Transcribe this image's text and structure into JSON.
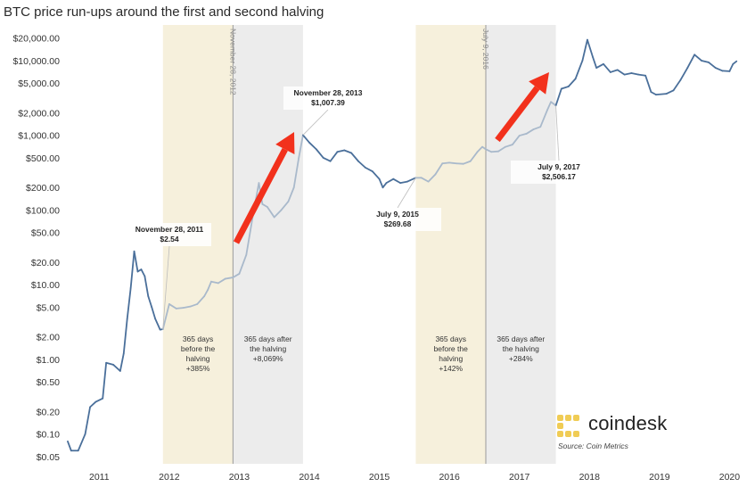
{
  "chart_data": {
    "type": "line",
    "title": "BTC price run-ups around the first and second halving",
    "xlabel": "",
    "ylabel": "",
    "scale": "log",
    "ylim": [
      0.04,
      30000
    ],
    "y_ticks": [
      {
        "value": 20000,
        "label": "$20,000.00"
      },
      {
        "value": 10000,
        "label": "$10,000.00"
      },
      {
        "value": 5000,
        "label": "$5,000.00"
      },
      {
        "value": 2000,
        "label": "$2,000.00"
      },
      {
        "value": 1000,
        "label": "$1,000.00"
      },
      {
        "value": 500,
        "label": "$500.00"
      },
      {
        "value": 200,
        "label": "$200.00"
      },
      {
        "value": 100,
        "label": "$100.00"
      },
      {
        "value": 50,
        "label": "$50.00"
      },
      {
        "value": 20,
        "label": "$20.00"
      },
      {
        "value": 10,
        "label": "$10.00"
      },
      {
        "value": 5,
        "label": "$5.00"
      },
      {
        "value": 2,
        "label": "$2.00"
      },
      {
        "value": 1,
        "label": "$1.00"
      },
      {
        "value": 0.5,
        "label": "$0.50"
      },
      {
        "value": 0.2,
        "label": "$0.20"
      },
      {
        "value": 0.1,
        "label": "$0.10"
      },
      {
        "value": 0.05,
        "label": "$0.05"
      }
    ],
    "x_ticks": [
      {
        "value": 2011.0,
        "label": "2011"
      },
      {
        "value": 2012.0,
        "label": "2012"
      },
      {
        "value": 2013.0,
        "label": "2013"
      },
      {
        "value": 2014.0,
        "label": "2014"
      },
      {
        "value": 2015.0,
        "label": "2015"
      },
      {
        "value": 2016.0,
        "label": "2016"
      },
      {
        "value": 2017.0,
        "label": "2017"
      },
      {
        "value": 2018.0,
        "label": "2018"
      },
      {
        "value": 2019.0,
        "label": "2019"
      },
      {
        "value": 2020.0,
        "label": "2020"
      }
    ],
    "grid": false,
    "bands": [
      {
        "from": 2011.91,
        "to": 2012.91,
        "color": "#f6f0dc",
        "label_lines": [
          "365 days",
          "before the",
          "halving",
          "+385%"
        ]
      },
      {
        "from": 2012.91,
        "to": 2013.91,
        "color": "#ececec",
        "label_lines": [
          "365 days after",
          "the halving",
          "+8,069%"
        ]
      },
      {
        "from": 2015.52,
        "to": 2016.52,
        "color": "#f6f0dc",
        "label_lines": [
          "365 days",
          "before the",
          "halving",
          "+142%"
        ]
      },
      {
        "from": 2016.52,
        "to": 2017.52,
        "color": "#ececec",
        "label_lines": [
          "365 days after",
          "the halving",
          "+284%"
        ]
      }
    ],
    "halvings": [
      {
        "x": 2012.91,
        "label": "November 28, 2012"
      },
      {
        "x": 2016.52,
        "label": "July 9, 2016"
      }
    ],
    "annotations": [
      {
        "x": 2011.91,
        "y": 2.54,
        "date": "November 28, 2011",
        "value": "$2.54"
      },
      {
        "x": 2013.91,
        "y": 1007.39,
        "date": "November 28, 2013",
        "value": "$1,007.39"
      },
      {
        "x": 2015.52,
        "y": 269.68,
        "date": "July 9, 2015",
        "value": "$269.68"
      },
      {
        "x": 2017.52,
        "y": 2506.17,
        "date": "July 9, 2017",
        "value": "$2,506.17"
      }
    ],
    "series": [
      {
        "color": "#4a6f9a",
        "highlight_color": "#a9b9cb",
        "points": [
          [
            2010.55,
            0.08
          ],
          [
            2010.6,
            0.06
          ],
          [
            2010.7,
            0.06
          ],
          [
            2010.8,
            0.1
          ],
          [
            2010.87,
            0.23
          ],
          [
            2010.95,
            0.27
          ],
          [
            2011.05,
            0.3
          ],
          [
            2011.1,
            0.9
          ],
          [
            2011.2,
            0.85
          ],
          [
            2011.3,
            0.7
          ],
          [
            2011.35,
            1.2
          ],
          [
            2011.4,
            3.5
          ],
          [
            2011.45,
            9.0
          ],
          [
            2011.5,
            28.0
          ],
          [
            2011.55,
            15.0
          ],
          [
            2011.6,
            16.0
          ],
          [
            2011.65,
            13.0
          ],
          [
            2011.7,
            7.0
          ],
          [
            2011.75,
            5.0
          ],
          [
            2011.8,
            3.5
          ],
          [
            2011.87,
            2.5
          ],
          [
            2011.91,
            2.54
          ],
          [
            2012.0,
            5.5
          ],
          [
            2012.1,
            4.8
          ],
          [
            2012.2,
            4.9
          ],
          [
            2012.3,
            5.1
          ],
          [
            2012.4,
            5.5
          ],
          [
            2012.5,
            7.0
          ],
          [
            2012.55,
            8.5
          ],
          [
            2012.6,
            11.0
          ],
          [
            2012.7,
            10.5
          ],
          [
            2012.8,
            12.0
          ],
          [
            2012.91,
            12.5
          ],
          [
            2013.0,
            14.0
          ],
          [
            2013.1,
            25.0
          ],
          [
            2013.2,
            90.0
          ],
          [
            2013.28,
            230.0
          ],
          [
            2013.33,
            120.0
          ],
          [
            2013.4,
            110.0
          ],
          [
            2013.5,
            80.0
          ],
          [
            2013.6,
            100.0
          ],
          [
            2013.7,
            130.0
          ],
          [
            2013.78,
            200.0
          ],
          [
            2013.85,
            500.0
          ],
          [
            2013.91,
            1007.39
          ],
          [
            2014.0,
            800.0
          ],
          [
            2014.1,
            650.0
          ],
          [
            2014.2,
            500.0
          ],
          [
            2014.3,
            450.0
          ],
          [
            2014.4,
            600.0
          ],
          [
            2014.5,
            630.0
          ],
          [
            2014.6,
            580.0
          ],
          [
            2014.7,
            450.0
          ],
          [
            2014.8,
            370.0
          ],
          [
            2014.9,
            330.0
          ],
          [
            2015.0,
            260.0
          ],
          [
            2015.05,
            200.0
          ],
          [
            2015.1,
            230.0
          ],
          [
            2015.2,
            260.0
          ],
          [
            2015.3,
            230.0
          ],
          [
            2015.4,
            240.0
          ],
          [
            2015.52,
            269.68
          ],
          [
            2015.6,
            270.0
          ],
          [
            2015.7,
            240.0
          ],
          [
            2015.8,
            300.0
          ],
          [
            2015.9,
            420.0
          ],
          [
            2016.0,
            430.0
          ],
          [
            2016.1,
            420.0
          ],
          [
            2016.2,
            415.0
          ],
          [
            2016.3,
            450.0
          ],
          [
            2016.4,
            600.0
          ],
          [
            2016.47,
            700.0
          ],
          [
            2016.52,
            650.0
          ],
          [
            2016.6,
            600.0
          ],
          [
            2016.7,
            610.0
          ],
          [
            2016.8,
            700.0
          ],
          [
            2016.9,
            750.0
          ],
          [
            2017.0,
            990.0
          ],
          [
            2017.1,
            1050.0
          ],
          [
            2017.2,
            1200.0
          ],
          [
            2017.3,
            1300.0
          ],
          [
            2017.4,
            2200.0
          ],
          [
            2017.45,
            2800.0
          ],
          [
            2017.52,
            2506.17
          ],
          [
            2017.6,
            4200.0
          ],
          [
            2017.7,
            4500.0
          ],
          [
            2017.8,
            5700.0
          ],
          [
            2017.9,
            10000.0
          ],
          [
            2017.97,
            19000.0
          ],
          [
            2018.05,
            11000.0
          ],
          [
            2018.1,
            8000.0
          ],
          [
            2018.2,
            9000.0
          ],
          [
            2018.3,
            7000.0
          ],
          [
            2018.4,
            7500.0
          ],
          [
            2018.5,
            6500.0
          ],
          [
            2018.6,
            6800.0
          ],
          [
            2018.7,
            6500.0
          ],
          [
            2018.8,
            6300.0
          ],
          [
            2018.88,
            3800.0
          ],
          [
            2018.95,
            3500.0
          ],
          [
            2019.1,
            3600.0
          ],
          [
            2019.2,
            4000.0
          ],
          [
            2019.3,
            5500.0
          ],
          [
            2019.4,
            8000.0
          ],
          [
            2019.5,
            12000.0
          ],
          [
            2019.6,
            10000.0
          ],
          [
            2019.7,
            9500.0
          ],
          [
            2019.8,
            8000.0
          ],
          [
            2019.9,
            7300.0
          ],
          [
            2020.0,
            7200.0
          ],
          [
            2020.05,
            9000.0
          ],
          [
            2020.1,
            9800.0
          ]
        ]
      }
    ]
  },
  "brand": {
    "logo_text": "coindesk",
    "source": "Source: Coin Metrics",
    "logo_color": "#f0cc55"
  },
  "arrows_color": "#f2311c"
}
